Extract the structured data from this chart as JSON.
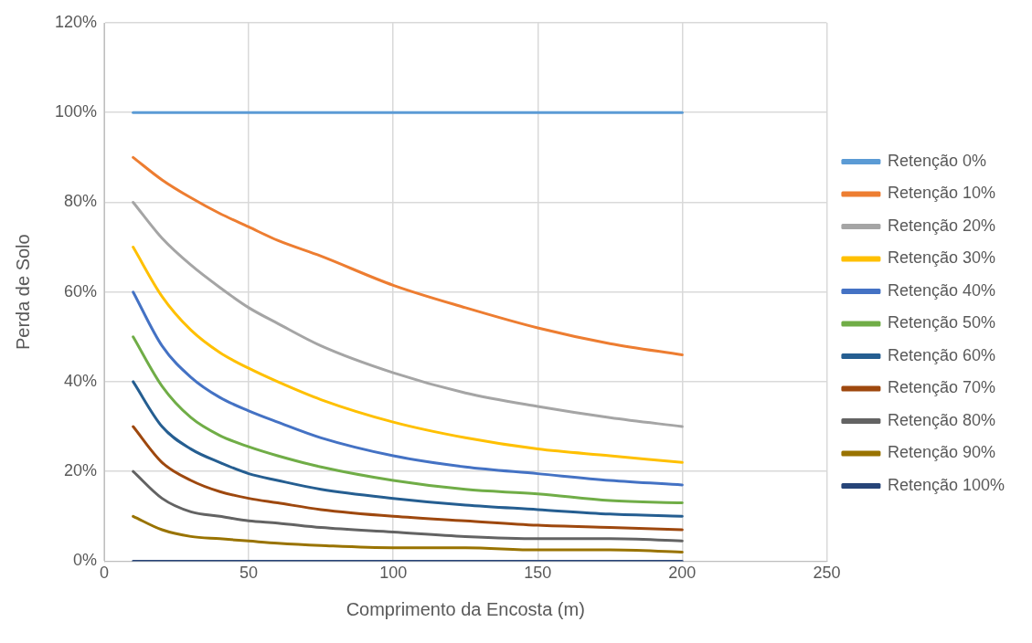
{
  "chart_data": {
    "type": "line",
    "xlabel": "Comprimento da Encosta (m)",
    "ylabel": "Perda de Solo",
    "x": [
      10,
      20,
      30,
      40,
      50,
      60,
      75,
      100,
      125,
      150,
      175,
      200
    ],
    "xlim": [
      0,
      250
    ],
    "xticks": [
      0,
      50,
      100,
      150,
      200,
      250
    ],
    "ylim": [
      0,
      120
    ],
    "yticks": [
      {
        "value": 0,
        "label": "0%"
      },
      {
        "value": 20,
        "label": "20%"
      },
      {
        "value": 40,
        "label": "40%"
      },
      {
        "value": 60,
        "label": "60%"
      },
      {
        "value": 80,
        "label": "80%"
      },
      {
        "value": 100,
        "label": "100%"
      },
      {
        "value": 120,
        "label": "120%"
      }
    ],
    "grid": true,
    "legend": "right",
    "marker": "none",
    "line_style": "solid",
    "series": [
      {
        "name": "Retenção 0%",
        "color": "#5b9bd5",
        "values": [
          100,
          100,
          100,
          100,
          100,
          100,
          100,
          100,
          100,
          100,
          100,
          100
        ]
      },
      {
        "name": "Retenção 10%",
        "color": "#ed7d31",
        "values": [
          90,
          85,
          81,
          77.5,
          74.5,
          71.5,
          68,
          61.5,
          56.5,
          52,
          48.5,
          46
        ]
      },
      {
        "name": "Retenção 20%",
        "color": "#a5a5a5",
        "values": [
          80,
          72,
          66,
          61,
          56.5,
          53,
          48,
          42,
          37.5,
          34.5,
          32,
          30
        ]
      },
      {
        "name": "Retenção 30%",
        "color": "#ffc000",
        "values": [
          70,
          59,
          51.5,
          46.5,
          43,
          40,
          36,
          31,
          27.5,
          25,
          23.5,
          22
        ]
      },
      {
        "name": "Retenção 40%",
        "color": "#4472c4",
        "values": [
          60,
          48,
          41,
          36.5,
          33.5,
          31,
          27.5,
          23.5,
          21,
          19.5,
          18,
          17
        ]
      },
      {
        "name": "Retenção 50%",
        "color": "#70ad47",
        "values": [
          50,
          39,
          32,
          28,
          25.5,
          23.5,
          21,
          18,
          16,
          15,
          13.5,
          13
        ]
      },
      {
        "name": "Retenção 60%",
        "color": "#255e91",
        "values": [
          40,
          30,
          25,
          22,
          19.5,
          18,
          16,
          14,
          12.5,
          11.5,
          10.5,
          10
        ]
      },
      {
        "name": "Retenção 70%",
        "color": "#9e480e",
        "values": [
          30,
          22,
          18,
          15.5,
          14,
          13,
          11.5,
          10,
          9,
          8,
          7.5,
          7
        ]
      },
      {
        "name": "Retenção 80%",
        "color": "#636363",
        "values": [
          20,
          14,
          11,
          10,
          9,
          8.5,
          7.5,
          6.5,
          5.5,
          5,
          5,
          4.5
        ]
      },
      {
        "name": "Retenção 90%",
        "color": "#997300",
        "values": [
          10,
          7,
          5.5,
          5,
          4.5,
          4,
          3.5,
          3,
          3,
          2.5,
          2.5,
          2
        ]
      },
      {
        "name": "Retenção 100%",
        "color": "#264478",
        "values": [
          0,
          0,
          0,
          0,
          0,
          0,
          0,
          0,
          0,
          0,
          0,
          0
        ]
      }
    ]
  }
}
